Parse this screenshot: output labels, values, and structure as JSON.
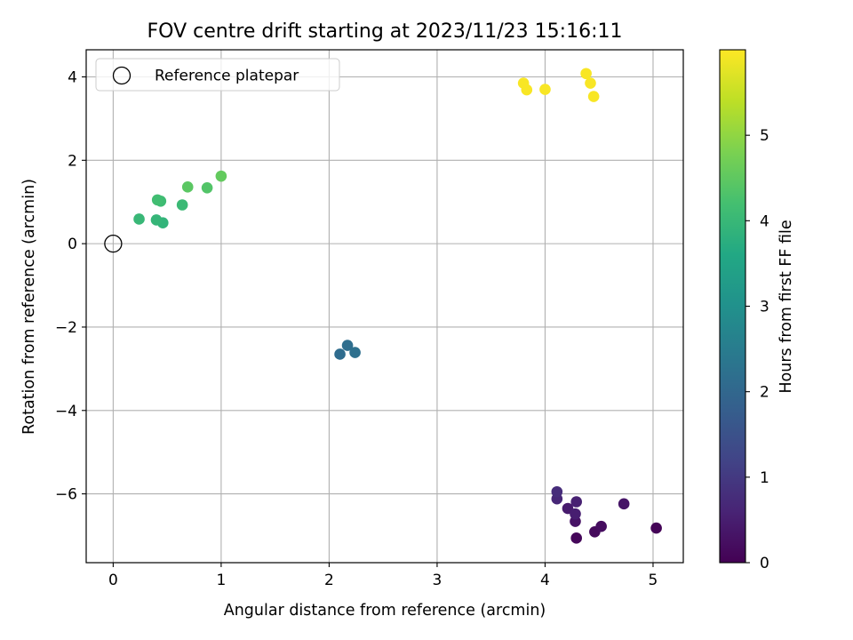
{
  "chart_data": {
    "type": "scatter",
    "title": "FOV centre drift starting at 2023/11/23 15:16:11",
    "xlabel": "Angular distance from reference (arcmin)",
    "ylabel": "Rotation from reference (arcmin)",
    "xlim": [
      -0.25,
      5.28
    ],
    "ylim": [
      -7.65,
      4.65
    ],
    "xticks": [
      0,
      1,
      2,
      3,
      4,
      5
    ],
    "yticks": [
      4,
      2,
      0,
      -2,
      -4,
      -6
    ],
    "xtick_labels": [
      "0",
      "1",
      "2",
      "3",
      "4",
      "5"
    ],
    "ytick_labels": [
      "4",
      "2",
      "0",
      "−2",
      "−4",
      "−6"
    ],
    "grid": true,
    "legend": {
      "placement": "top-left",
      "entries": [
        "Reference platepar"
      ]
    },
    "reference": {
      "x": 0,
      "y": 0
    },
    "colorbar": {
      "label": "Hours from first FF file",
      "range": [
        0,
        6
      ],
      "ticks": [
        0,
        1,
        2,
        3,
        4,
        5
      ],
      "tick_labels": [
        "0",
        "1",
        "2",
        "3",
        "4",
        "5"
      ],
      "colormap": "viridis"
    },
    "points": [
      {
        "x": 5.03,
        "y": -6.82,
        "h": 0.05
      },
      {
        "x": 4.29,
        "y": -7.06,
        "h": 0.1
      },
      {
        "x": 4.46,
        "y": -6.91,
        "h": 0.15
      },
      {
        "x": 4.52,
        "y": -6.78,
        "h": 0.2
      },
      {
        "x": 4.28,
        "y": -6.66,
        "h": 0.3
      },
      {
        "x": 4.73,
        "y": -6.24,
        "h": 0.35
      },
      {
        "x": 4.21,
        "y": -6.35,
        "h": 0.45
      },
      {
        "x": 4.28,
        "y": -6.48,
        "h": 0.5
      },
      {
        "x": 4.29,
        "y": -6.19,
        "h": 0.55
      },
      {
        "x": 4.11,
        "y": -6.12,
        "h": 0.65
      },
      {
        "x": 4.11,
        "y": -5.95,
        "h": 0.75
      },
      {
        "x": 2.1,
        "y": -2.65,
        "h": 2.1
      },
      {
        "x": 2.17,
        "y": -2.44,
        "h": 2.15
      },
      {
        "x": 2.24,
        "y": -2.61,
        "h": 2.2
      },
      {
        "x": 0.46,
        "y": 0.5,
        "h": 3.9
      },
      {
        "x": 0.4,
        "y": 0.57,
        "h": 3.95
      },
      {
        "x": 0.24,
        "y": 0.59,
        "h": 4.0
      },
      {
        "x": 0.64,
        "y": 0.93,
        "h": 4.05
      },
      {
        "x": 0.44,
        "y": 1.02,
        "h": 4.1
      },
      {
        "x": 0.41,
        "y": 1.05,
        "h": 4.15
      },
      {
        "x": 0.87,
        "y": 1.34,
        "h": 4.35
      },
      {
        "x": 0.69,
        "y": 1.36,
        "h": 4.45
      },
      {
        "x": 1.0,
        "y": 1.62,
        "h": 4.55
      },
      {
        "x": 3.8,
        "y": 3.85,
        "h": 5.95
      },
      {
        "x": 3.83,
        "y": 3.69,
        "h": 5.95
      },
      {
        "x": 4.0,
        "y": 3.7,
        "h": 5.95
      },
      {
        "x": 4.38,
        "y": 4.08,
        "h": 5.95
      },
      {
        "x": 4.42,
        "y": 3.85,
        "h": 5.95
      },
      {
        "x": 4.45,
        "y": 3.53,
        "h": 5.95
      }
    ]
  }
}
